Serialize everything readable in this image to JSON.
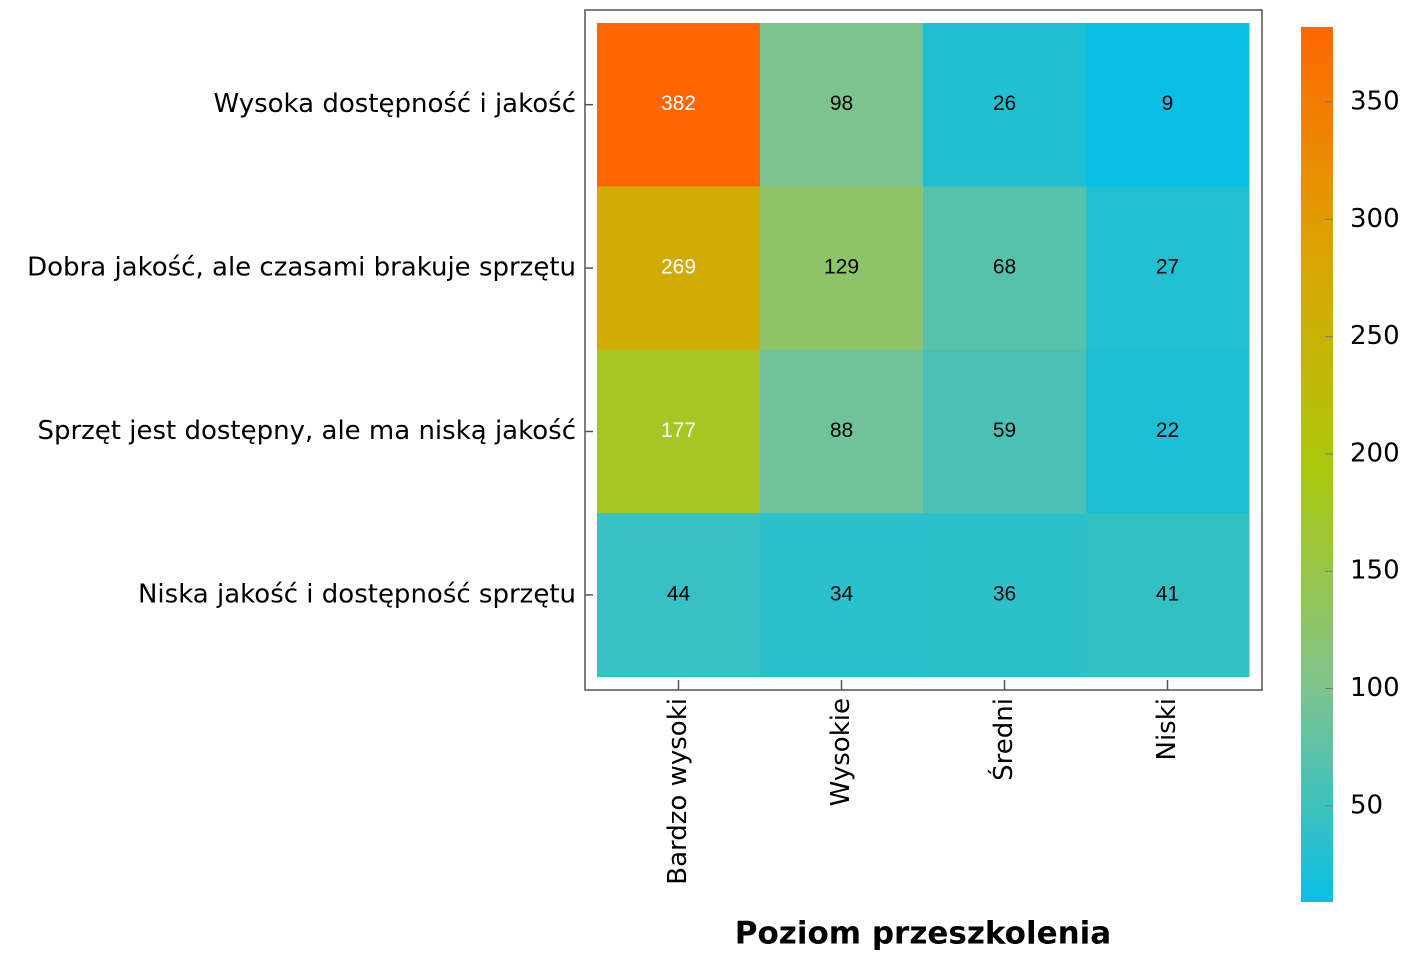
{
  "chart_data": {
    "type": "heatmap",
    "x_label": "Poziom przeszkolenia",
    "x_categories": [
      "Bardzo wysoki",
      "Wysokie",
      "Średni",
      "Niski"
    ],
    "y_categories": [
      "Wysoka dostępność i jakość",
      "Dobra jakość, ale czasami brakuje sprzętu",
      "Sprzęt jest dostępny, ale ma niską jakość",
      "Niska jakość i dostępność sprzętu"
    ],
    "values": [
      [
        382,
        98,
        26,
        9
      ],
      [
        269,
        129,
        68,
        27
      ],
      [
        177,
        88,
        59,
        22
      ],
      [
        44,
        34,
        36,
        41
      ]
    ],
    "colorscale": [
      "#0abfe3",
      "#82c38c",
      "#acc80a",
      "#dca300",
      "#ff6600"
    ],
    "zlim": [
      9,
      382
    ],
    "zticks": [
      50,
      100,
      150,
      200,
      250,
      300,
      350
    ]
  }
}
